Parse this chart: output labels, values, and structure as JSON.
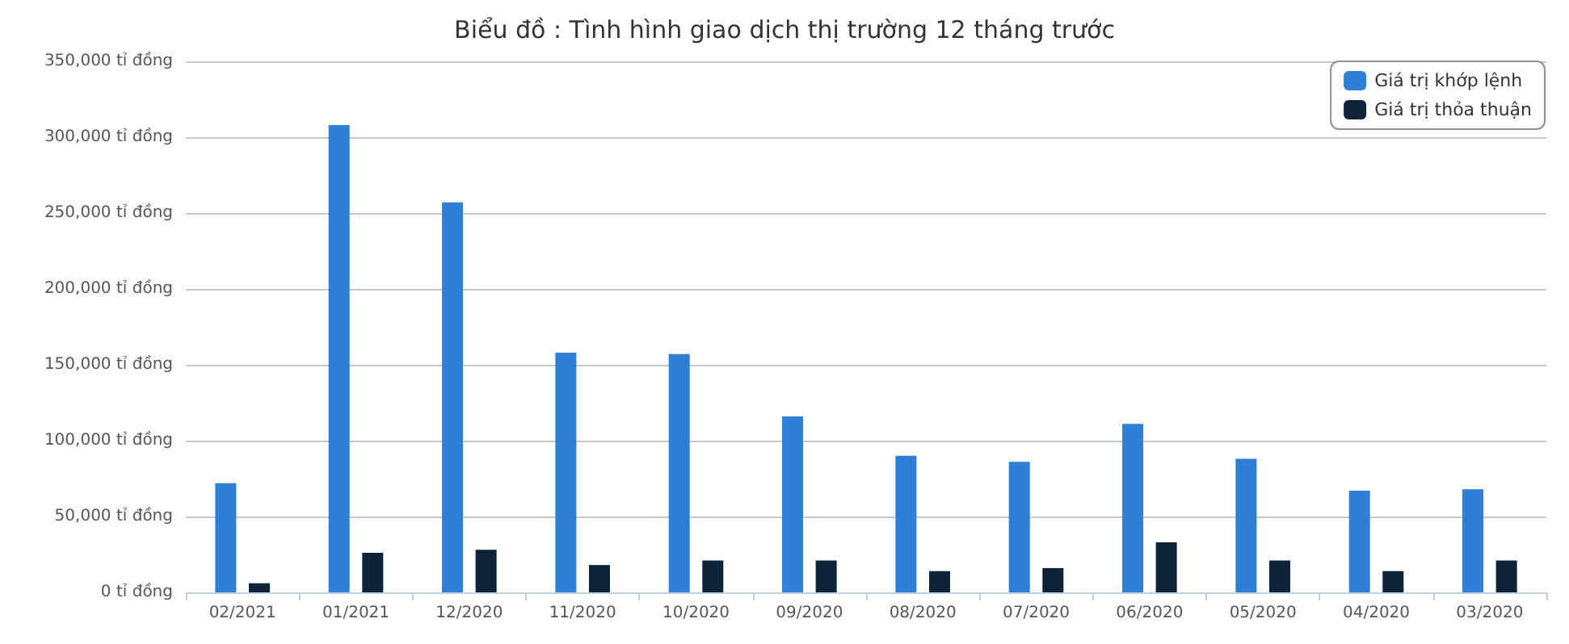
{
  "chart_data": {
    "type": "bar",
    "title": "Biểu đồ : Tình hình giao dịch thị trường 12 tháng trước",
    "categories": [
      "02/2021",
      "01/2021",
      "12/2020",
      "11/2020",
      "10/2020",
      "09/2020",
      "08/2020",
      "07/2020",
      "06/2020",
      "05/2020",
      "04/2020",
      "03/2020"
    ],
    "series": [
      {
        "name": "Giá trị khớp lệnh",
        "color": "#2f7ed8",
        "values": [
          72000,
          308000,
          257000,
          158000,
          157000,
          116000,
          90000,
          86000,
          111000,
          88000,
          67000,
          68000
        ]
      },
      {
        "name": "Giá trị thỏa thuận",
        "color": "#0d233a",
        "values": [
          6000,
          26000,
          28000,
          18000,
          21000,
          21000,
          14000,
          16000,
          33000,
          21000,
          14000,
          21000
        ]
      }
    ],
    "ylim": [
      0,
      350000
    ],
    "yticks": [
      {
        "value": 0,
        "label": "0 tỉ đồng"
      },
      {
        "value": 50000,
        "label": "50,000 tỉ đồng"
      },
      {
        "value": 100000,
        "label": "100,000 tỉ đồng"
      },
      {
        "value": 150000,
        "label": "150,000 tỉ đồng"
      },
      {
        "value": 200000,
        "label": "200,000 tỉ đồng"
      },
      {
        "value": 250000,
        "label": "250,000 tỉ đồng"
      },
      {
        "value": 300000,
        "label": "300,000 tỉ đồng"
      },
      {
        "value": 350000,
        "label": "350,000 tỉ đồng"
      }
    ],
    "grid": "y",
    "legend": "top right"
  }
}
